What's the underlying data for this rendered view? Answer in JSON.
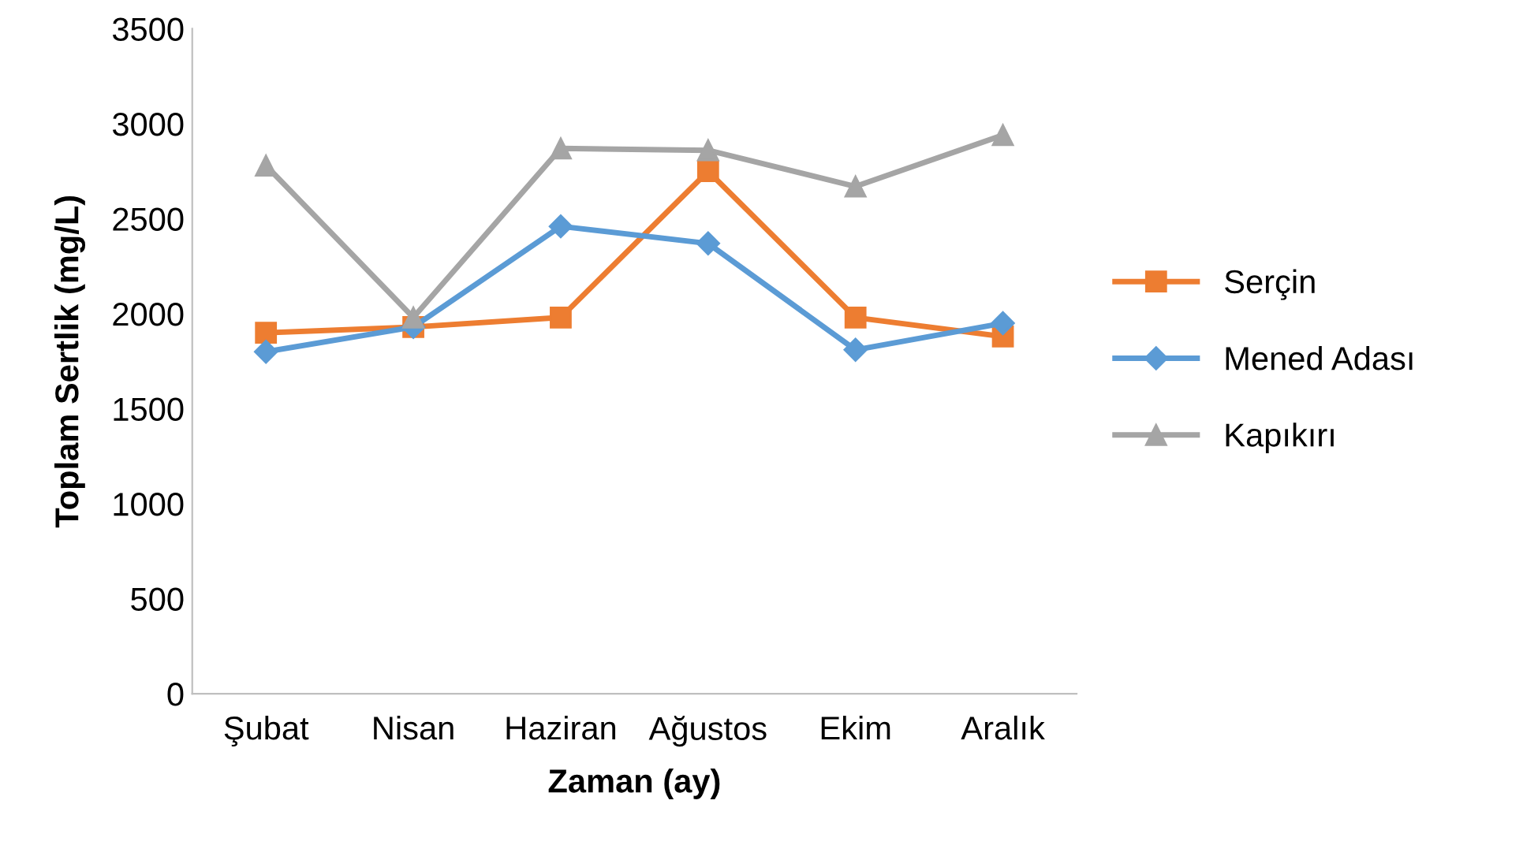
{
  "chart_data": {
    "type": "line",
    "xlabel": "Zaman (ay)",
    "ylabel": "Toplam Sertlik (mg/L)",
    "categories": [
      "Şubat",
      "Nisan",
      "Haziran",
      "Ağustos",
      "Ekim",
      "Aralık"
    ],
    "series": [
      {
        "name": "Serçin",
        "color": "#ed7d31",
        "marker": "square",
        "values": [
          1900,
          1930,
          1980,
          2750,
          1980,
          1880
        ]
      },
      {
        "name": "Mened Adası",
        "color": "#5b9bd5",
        "marker": "diamond",
        "values": [
          1800,
          1930,
          2460,
          2370,
          1810,
          1950
        ]
      },
      {
        "name": "Kapıkırı",
        "color": "#a5a5a5",
        "marker": "triangle",
        "values": [
          2780,
          1980,
          2870,
          2860,
          2670,
          2940
        ]
      }
    ],
    "ylim": [
      0,
      3500
    ],
    "yticks": [
      0,
      500,
      1000,
      1500,
      2000,
      2500,
      3000,
      3500
    ],
    "grid": false,
    "legend": "right",
    "line_style": "solid"
  }
}
